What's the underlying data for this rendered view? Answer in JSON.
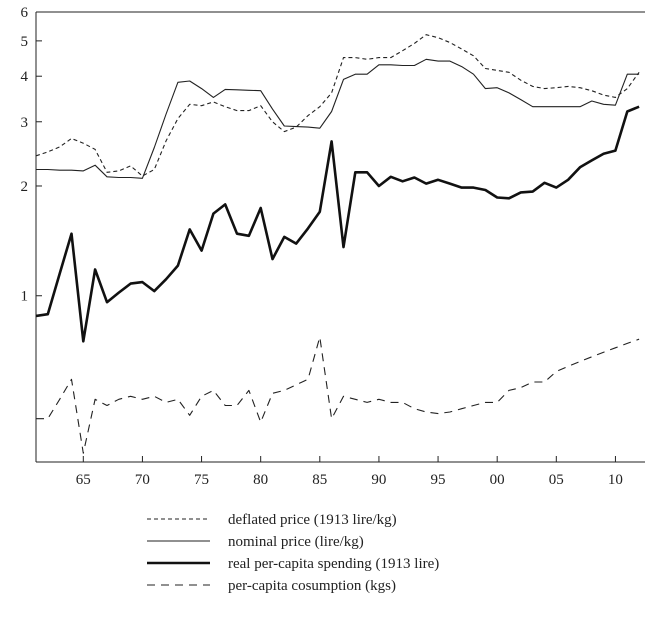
{
  "chart_data": {
    "type": "line",
    "title": "",
    "xlabel": "",
    "ylabel": "",
    "y_scale": "log",
    "grid": false,
    "legend_position": "bottom",
    "xlim": [
      1861,
      1912.5
    ],
    "ylim": [
      0.35,
      6
    ],
    "x_ticks": [
      {
        "value": 1865,
        "label": "65"
      },
      {
        "value": 1870,
        "label": "70"
      },
      {
        "value": 1875,
        "label": "75"
      },
      {
        "value": 1880,
        "label": "80"
      },
      {
        "value": 1885,
        "label": "85"
      },
      {
        "value": 1890,
        "label": "90"
      },
      {
        "value": 1895,
        "label": "95"
      },
      {
        "value": 1900,
        "label": "00"
      },
      {
        "value": 1905,
        "label": "05"
      },
      {
        "value": 1910,
        "label": "10"
      }
    ],
    "y_ticks": [
      {
        "value": 1,
        "label": "1"
      },
      {
        "value": 2,
        "label": "2"
      },
      {
        "value": 3,
        "label": "3"
      },
      {
        "value": 4,
        "label": "4"
      },
      {
        "value": 5,
        "label": "5"
      },
      {
        "value": 6,
        "label": "6"
      }
    ],
    "series": [
      {
        "name": "deflated price (1913 lire/kg)",
        "style": "dotted",
        "color": "#222222",
        "x": [
          1861,
          1862,
          1863,
          1864,
          1865,
          1866,
          1867,
          1868,
          1869,
          1870,
          1871,
          1872,
          1873,
          1874,
          1875,
          1876,
          1877,
          1878,
          1879,
          1880,
          1881,
          1882,
          1883,
          1884,
          1885,
          1886,
          1887,
          1888,
          1889,
          1890,
          1891,
          1892,
          1893,
          1894,
          1895,
          1896,
          1897,
          1898,
          1899,
          1900,
          1901,
          1902,
          1903,
          1904,
          1905,
          1906,
          1907,
          1908,
          1909,
          1910,
          1911,
          1912
        ],
        "values": [
          2.42,
          2.48,
          2.56,
          2.7,
          2.62,
          2.52,
          2.18,
          2.2,
          2.27,
          2.13,
          2.22,
          2.66,
          3.06,
          3.35,
          3.32,
          3.4,
          3.3,
          3.22,
          3.22,
          3.32,
          3.0,
          2.82,
          2.9,
          3.12,
          3.3,
          3.6,
          4.5,
          4.5,
          4.45,
          4.5,
          4.5,
          4.7,
          4.92,
          5.2,
          5.1,
          4.95,
          4.75,
          4.55,
          4.2,
          4.15,
          4.1,
          3.9,
          3.75,
          3.7,
          3.72,
          3.75,
          3.72,
          3.65,
          3.55,
          3.5,
          3.7,
          4.1
        ]
      },
      {
        "name": "nominal price (lire/kg)",
        "style": "thin",
        "color": "#222222",
        "x": [
          1861,
          1862,
          1863,
          1864,
          1865,
          1866,
          1867,
          1868,
          1869,
          1870,
          1871,
          1872,
          1873,
          1874,
          1875,
          1876,
          1877,
          1878,
          1879,
          1880,
          1881,
          1882,
          1883,
          1884,
          1885,
          1886,
          1887,
          1888,
          1889,
          1890,
          1891,
          1892,
          1893,
          1894,
          1895,
          1896,
          1897,
          1898,
          1899,
          1900,
          1901,
          1902,
          1903,
          1904,
          1905,
          1906,
          1907,
          1908,
          1909,
          1910,
          1911,
          1912
        ],
        "values": [
          2.22,
          2.22,
          2.21,
          2.21,
          2.2,
          2.28,
          2.12,
          2.11,
          2.11,
          2.1,
          2.55,
          3.15,
          3.85,
          3.88,
          3.7,
          3.5,
          3.68,
          3.67,
          3.66,
          3.65,
          3.25,
          2.92,
          2.91,
          2.9,
          2.88,
          3.2,
          3.92,
          4.05,
          4.05,
          4.3,
          4.3,
          4.28,
          4.28,
          4.45,
          4.4,
          4.4,
          4.25,
          4.05,
          3.7,
          3.72,
          3.6,
          3.45,
          3.3,
          3.3,
          3.3,
          3.3,
          3.3,
          3.42,
          3.35,
          3.33,
          4.05,
          4.05
        ]
      },
      {
        "name": "real per-capita spending (1913 lire)",
        "style": "thick",
        "color": "#111111",
        "x": [
          1861,
          1862,
          1863,
          1864,
          1865,
          1866,
          1867,
          1868,
          1869,
          1870,
          1871,
          1872,
          1873,
          1874,
          1875,
          1876,
          1877,
          1878,
          1879,
          1880,
          1881,
          1882,
          1883,
          1884,
          1885,
          1886,
          1887,
          1888,
          1889,
          1890,
          1891,
          1892,
          1893,
          1894,
          1895,
          1896,
          1897,
          1898,
          1899,
          1900,
          1901,
          1902,
          1903,
          1904,
          1905,
          1906,
          1907,
          1908,
          1909,
          1910,
          1911,
          1912
        ],
        "values": [
          0.88,
          0.89,
          1.15,
          1.48,
          0.75,
          1.18,
          0.96,
          1.02,
          1.08,
          1.09,
          1.03,
          1.11,
          1.21,
          1.52,
          1.33,
          1.68,
          1.78,
          1.48,
          1.46,
          1.74,
          1.26,
          1.45,
          1.39,
          1.53,
          1.7,
          2.65,
          1.36,
          2.18,
          2.18,
          2.0,
          2.12,
          2.06,
          2.11,
          2.03,
          2.08,
          2.03,
          1.98,
          1.98,
          1.95,
          1.86,
          1.85,
          1.92,
          1.93,
          2.04,
          1.98,
          2.08,
          2.25,
          2.35,
          2.45,
          2.5,
          3.2,
          3.3
        ]
      },
      {
        "name": "per-capita cosumption (kgs)",
        "style": "dashed",
        "color": "#222222",
        "x": [
          1861,
          1862,
          1863,
          1864,
          1865,
          1866,
          1867,
          1868,
          1869,
          1870,
          1871,
          1872,
          1873,
          1874,
          1875,
          1876,
          1877,
          1878,
          1879,
          1880,
          1881,
          1882,
          1883,
          1884,
          1885,
          1886,
          1887,
          1888,
          1889,
          1890,
          1891,
          1892,
          1893,
          1894,
          1895,
          1896,
          1897,
          1898,
          1899,
          1900,
          1901,
          1902,
          1903,
          1904,
          1905,
          1906,
          1907,
          1908,
          1909,
          1910,
          1911,
          1912
        ],
        "values": [
          0.46,
          0.46,
          0.52,
          0.59,
          0.37,
          0.52,
          0.5,
          0.52,
          0.53,
          0.52,
          0.53,
          0.51,
          0.52,
          0.47,
          0.53,
          0.55,
          0.5,
          0.5,
          0.55,
          0.45,
          0.54,
          0.55,
          0.57,
          0.59,
          0.77,
          0.46,
          0.53,
          0.52,
          0.51,
          0.52,
          0.51,
          0.51,
          0.49,
          0.48,
          0.475,
          0.48,
          0.49,
          0.5,
          0.51,
          0.51,
          0.55,
          0.56,
          0.58,
          0.58,
          0.62,
          0.64,
          0.66,
          0.68,
          0.7,
          0.72,
          0.74,
          0.76
        ]
      }
    ]
  }
}
